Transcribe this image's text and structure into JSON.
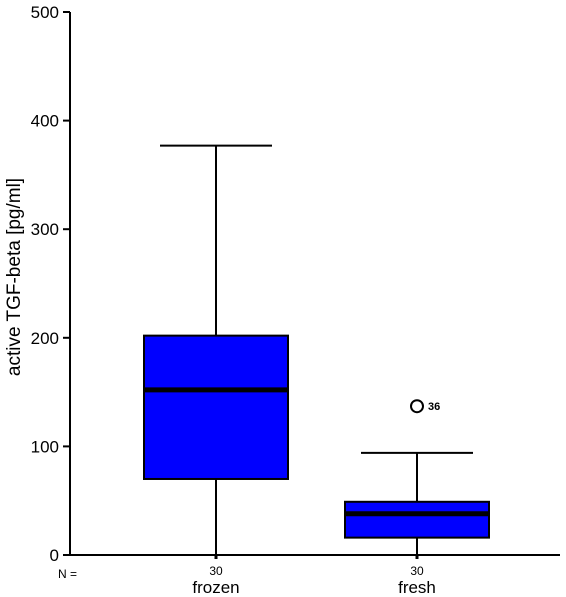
{
  "chart_data": {
    "type": "box",
    "title": "",
    "xlabel": "",
    "ylabel": "active TGF-beta [pg/ml]",
    "ylim": [
      0,
      500
    ],
    "yticks": [
      0,
      100,
      200,
      300,
      400,
      500
    ],
    "n_prefix": "N =",
    "box_color": "#0000ff",
    "categories": [
      "frozen",
      "fresh"
    ],
    "n_values": [
      "30",
      "30"
    ],
    "boxes": [
      {
        "category": "frozen",
        "whisker_low": 0,
        "q1": 70,
        "median": 152,
        "q3": 202,
        "whisker_high": 377,
        "outliers": []
      },
      {
        "category": "fresh",
        "whisker_low": 0,
        "q1": 16,
        "median": 38,
        "q3": 49,
        "whisker_high": 94,
        "outliers": [
          {
            "value": 137,
            "label": "36"
          }
        ]
      }
    ]
  }
}
